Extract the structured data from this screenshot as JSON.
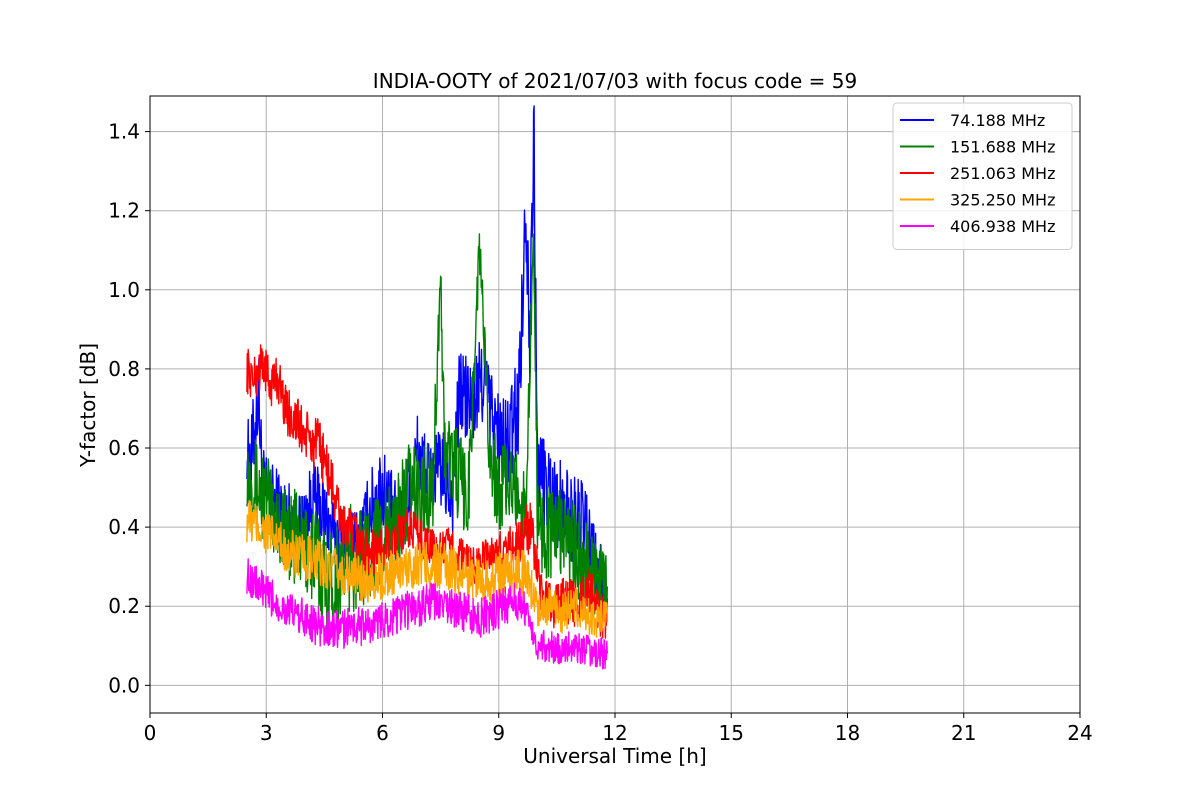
{
  "chart_data": {
    "type": "line",
    "title": "INDIA-OOTY of 2021/07/03 with focus code = 59",
    "xlabel": "Universal Time [h]",
    "ylabel": "Y-factor [dB]",
    "xlim": [
      0,
      24
    ],
    "ylim": [
      -0.07,
      1.49
    ],
    "xticks": [
      0,
      3,
      6,
      9,
      12,
      15,
      18,
      21,
      24
    ],
    "yticks": [
      0.0,
      0.2,
      0.4,
      0.6,
      0.8,
      1.0,
      1.2,
      1.4
    ],
    "grid": true,
    "legend_position": "top-right",
    "series": [
      {
        "name": " 74.188 MHz",
        "color": "#0000ff",
        "x": [
          2.5,
          2.6,
          2.8,
          2.9,
          3.0,
          3.3,
          3.6,
          3.9,
          4.2,
          4.5,
          4.8,
          5.1,
          5.4,
          5.7,
          6.0,
          6.3,
          6.6,
          6.9,
          7.2,
          7.5,
          7.8,
          8.0,
          8.3,
          8.6,
          8.9,
          9.2,
          9.5,
          9.7,
          9.8,
          9.9,
          10.0,
          10.3,
          10.6,
          10.9,
          11.2,
          11.5,
          11.8
        ],
        "y": [
          0.6,
          0.55,
          0.75,
          0.5,
          0.48,
          0.45,
          0.42,
          0.4,
          0.47,
          0.43,
          0.38,
          0.35,
          0.36,
          0.45,
          0.5,
          0.42,
          0.43,
          0.58,
          0.52,
          0.55,
          0.48,
          0.75,
          0.7,
          0.78,
          0.65,
          0.6,
          0.7,
          1.2,
          0.95,
          1.42,
          0.55,
          0.5,
          0.45,
          0.42,
          0.4,
          0.3,
          0.22
        ],
        "y_spread": [
          0.08,
          0.12,
          0.12,
          0.12,
          0.1,
          0.1,
          0.1,
          0.08,
          0.1,
          0.1,
          0.08,
          0.08,
          0.1,
          0.1,
          0.12,
          0.1,
          0.1,
          0.12,
          0.1,
          0.1,
          0.12,
          0.12,
          0.12,
          0.12,
          0.12,
          0.12,
          0.15,
          0.1,
          0.2,
          0.15,
          0.12,
          0.12,
          0.12,
          0.12,
          0.12,
          0.1,
          0.08
        ]
      },
      {
        "name": "151.688 MHz",
        "color": "#008000",
        "x": [
          2.5,
          2.8,
          3.1,
          3.4,
          3.7,
          4.0,
          4.3,
          4.6,
          4.9,
          5.2,
          5.5,
          5.8,
          6.1,
          6.4,
          6.7,
          7.0,
          7.3,
          7.5,
          7.6,
          7.9,
          8.2,
          8.5,
          8.8,
          9.1,
          9.4,
          9.7,
          9.9,
          10.0,
          10.3,
          10.6,
          10.9,
          11.2,
          11.5,
          11.8
        ],
        "y": [
          0.55,
          0.5,
          0.45,
          0.4,
          0.38,
          0.35,
          0.32,
          0.25,
          0.3,
          0.32,
          0.32,
          0.36,
          0.38,
          0.42,
          0.5,
          0.48,
          0.52,
          1.03,
          0.6,
          0.55,
          0.45,
          1.11,
          0.55,
          0.5,
          0.5,
          0.45,
          1.15,
          0.42,
          0.38,
          0.4,
          0.35,
          0.3,
          0.28,
          0.25
        ],
        "y_spread": [
          0.1,
          0.12,
          0.12,
          0.12,
          0.12,
          0.12,
          0.14,
          0.15,
          0.14,
          0.14,
          0.12,
          0.12,
          0.12,
          0.12,
          0.12,
          0.12,
          0.12,
          0.05,
          0.12,
          0.12,
          0.12,
          0.05,
          0.12,
          0.12,
          0.1,
          0.1,
          0.05,
          0.12,
          0.12,
          0.12,
          0.12,
          0.12,
          0.1,
          0.08
        ]
      },
      {
        "name": "251.063 MHz",
        "color": "#ff0000",
        "x": [
          2.5,
          2.7,
          2.9,
          3.1,
          3.3,
          3.5,
          3.8,
          4.1,
          4.4,
          4.7,
          5.0,
          5.3,
          5.6,
          5.9,
          6.2,
          6.5,
          6.8,
          7.1,
          7.4,
          7.7,
          8.0,
          8.3,
          8.6,
          8.9,
          9.2,
          9.5,
          9.8,
          10.1,
          10.4,
          10.7,
          11.0,
          11.3,
          11.6,
          11.8
        ],
        "y": [
          0.8,
          0.77,
          0.82,
          0.76,
          0.78,
          0.7,
          0.66,
          0.62,
          0.6,
          0.5,
          0.4,
          0.38,
          0.33,
          0.34,
          0.35,
          0.38,
          0.4,
          0.36,
          0.34,
          0.35,
          0.33,
          0.3,
          0.32,
          0.33,
          0.35,
          0.36,
          0.4,
          0.22,
          0.2,
          0.22,
          0.2,
          0.25,
          0.18,
          0.16
        ],
        "y_spread": [
          0.06,
          0.06,
          0.06,
          0.06,
          0.06,
          0.06,
          0.07,
          0.07,
          0.07,
          0.07,
          0.06,
          0.06,
          0.06,
          0.06,
          0.06,
          0.06,
          0.06,
          0.05,
          0.05,
          0.05,
          0.05,
          0.05,
          0.05,
          0.05,
          0.05,
          0.06,
          0.08,
          0.06,
          0.06,
          0.06,
          0.06,
          0.06,
          0.06,
          0.05
        ]
      },
      {
        "name": "325.250 MHz",
        "color": "#ffa500",
        "x": [
          2.5,
          2.8,
          3.1,
          3.4,
          3.7,
          4.0,
          4.3,
          4.6,
          4.9,
          5.2,
          5.5,
          5.8,
          6.1,
          6.4,
          6.7,
          7.0,
          7.3,
          7.6,
          7.9,
          8.2,
          8.5,
          8.8,
          9.1,
          9.4,
          9.7,
          10.0,
          10.3,
          10.6,
          10.9,
          11.2,
          11.5,
          11.8
        ],
        "y": [
          0.42,
          0.4,
          0.38,
          0.35,
          0.33,
          0.32,
          0.31,
          0.3,
          0.28,
          0.28,
          0.27,
          0.27,
          0.28,
          0.29,
          0.3,
          0.31,
          0.3,
          0.3,
          0.29,
          0.28,
          0.27,
          0.27,
          0.28,
          0.29,
          0.28,
          0.2,
          0.2,
          0.18,
          0.2,
          0.18,
          0.17,
          0.16
        ],
        "y_spread": [
          0.06,
          0.06,
          0.06,
          0.06,
          0.06,
          0.06,
          0.06,
          0.06,
          0.06,
          0.06,
          0.06,
          0.06,
          0.06,
          0.06,
          0.06,
          0.06,
          0.06,
          0.06,
          0.06,
          0.06,
          0.06,
          0.06,
          0.06,
          0.06,
          0.06,
          0.05,
          0.05,
          0.05,
          0.05,
          0.05,
          0.05,
          0.05
        ]
      },
      {
        "name": "406.938 MHz",
        "color": "#ff00ff",
        "x": [
          2.5,
          2.8,
          3.1,
          3.4,
          3.7,
          4.0,
          4.3,
          4.6,
          4.9,
          5.2,
          5.5,
          5.8,
          6.1,
          6.4,
          6.7,
          7.0,
          7.3,
          7.6,
          7.9,
          8.2,
          8.5,
          8.8,
          9.1,
          9.4,
          9.7,
          10.0,
          10.3,
          10.6,
          10.9,
          11.2,
          11.5,
          11.8
        ],
        "y": [
          0.28,
          0.25,
          0.22,
          0.2,
          0.18,
          0.17,
          0.15,
          0.14,
          0.14,
          0.15,
          0.15,
          0.15,
          0.17,
          0.18,
          0.19,
          0.2,
          0.21,
          0.2,
          0.19,
          0.18,
          0.17,
          0.18,
          0.2,
          0.21,
          0.2,
          0.1,
          0.1,
          0.09,
          0.1,
          0.09,
          0.08,
          0.08
        ],
        "y_spread": [
          0.05,
          0.05,
          0.05,
          0.05,
          0.05,
          0.05,
          0.05,
          0.05,
          0.05,
          0.05,
          0.05,
          0.05,
          0.05,
          0.05,
          0.05,
          0.05,
          0.05,
          0.05,
          0.05,
          0.05,
          0.05,
          0.05,
          0.05,
          0.05,
          0.05,
          0.04,
          0.04,
          0.04,
          0.04,
          0.04,
          0.04,
          0.04
        ]
      }
    ]
  }
}
